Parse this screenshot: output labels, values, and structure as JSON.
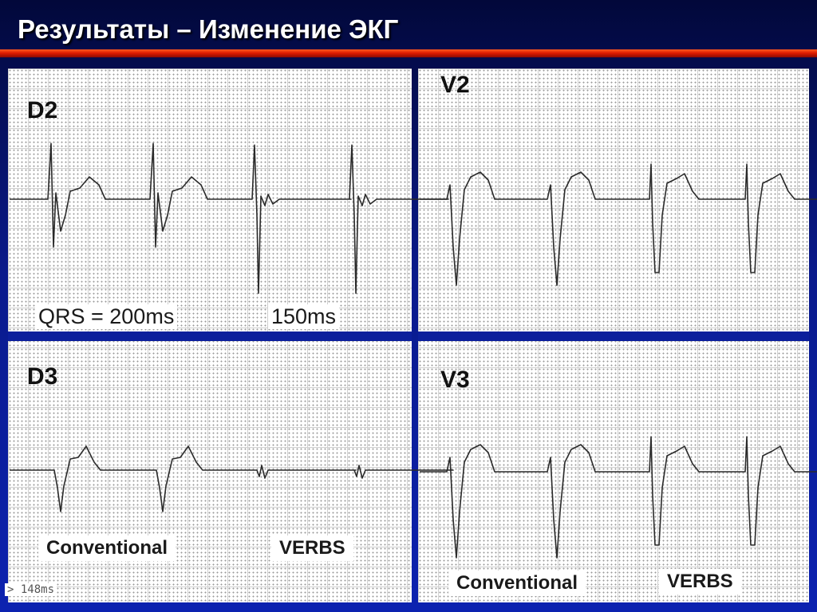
{
  "slide": {
    "title": "Результаты – Изменение ЭКГ"
  },
  "leads": {
    "d2": "D2",
    "d3": "D3",
    "v2": "V2",
    "v3": "V3"
  },
  "measurements": {
    "conventional_qrs": "QRS = 200ms",
    "verbs_qrs": "150ms"
  },
  "captions": {
    "left_conventional": "Conventional",
    "left_verbs": "VERBS",
    "right_conventional": "Conventional",
    "right_verbs": "VERBS"
  },
  "footer": {
    "scale_note": "148ms"
  }
}
